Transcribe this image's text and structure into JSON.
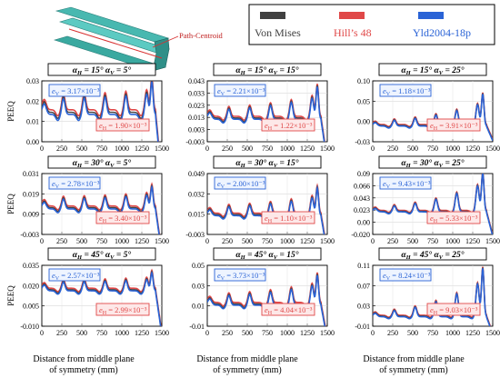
{
  "legend": {
    "items": [
      {
        "label": "Von Mises",
        "color": "#404040"
      },
      {
        "label": "Hill’s 48",
        "color": "#e04848"
      },
      {
        "label": "Yld2004-18p",
        "color": "#2a63d6"
      }
    ]
  },
  "inset": {
    "label": "Path-Centroid"
  },
  "colors": {
    "vm": "#404040",
    "hill": "#e04848",
    "yld": "#2a63d6",
    "ev_border": "#2a63d6",
    "ev_text": "#2a63d6",
    "eh_border": "#e04848",
    "eh_text": "#e04848",
    "eh_fill": "#fde8e8"
  },
  "footer": {
    "xlabel_line1": "Distance from middle plane",
    "xlabel_line2": "of symmetry (mm)",
    "ylabel": "PEEQ"
  },
  "chart_data": [
    {
      "type": "line",
      "row": 0,
      "col": 0,
      "alpha_h": "15°",
      "alpha_v": "5°",
      "yticks": [
        "0.03",
        "0.02",
        "0.01",
        "0.00"
      ],
      "ylim": [
        0,
        0.03
      ],
      "xticks": [
        "0",
        "250",
        "500",
        "750",
        "1000",
        "1250",
        "1500"
      ],
      "xlim": [
        0,
        1500
      ],
      "e_v": "3.17×10⁻³",
      "e_h": "1.90×10⁻³",
      "series_base": 0.0145,
      "peak_amp": 0.0085,
      "peak_growth": 0.3
    },
    {
      "type": "line",
      "row": 0,
      "col": 1,
      "alpha_h": "15°",
      "alpha_v": "15°",
      "yticks": [
        "0.043",
        "0.033",
        "0.023",
        "0.013",
        "0.003",
        "-0.003"
      ],
      "ylim": [
        -0.003,
        0.043
      ],
      "xticks": [
        "0",
        "250",
        "500",
        "750",
        "1000",
        "1250",
        "1500"
      ],
      "xlim": [
        0,
        1500
      ],
      "e_v": "2.21×10⁻³",
      "e_h": "1.22×10⁻³",
      "series_base": 0.015,
      "peak_amp": 0.008,
      "peak_growth": 1.2
    },
    {
      "type": "line",
      "row": 0,
      "col": 2,
      "alpha_h": "15°",
      "alpha_v": "25°",
      "yticks": [
        "0.10",
        "0.05",
        "0.00",
        "-0.03"
      ],
      "ylim": [
        -0.03,
        0.1
      ],
      "xticks": [
        "0",
        "250",
        "500",
        "750",
        "1000",
        "1250",
        "1500"
      ],
      "xlim": [
        0,
        1500
      ],
      "e_v": "1.18×10⁻³",
      "e_h": "3.91×10⁻³",
      "series_base": 0.005,
      "peak_amp": 0.012,
      "peak_growth": 3.2
    },
    {
      "type": "line",
      "row": 1,
      "col": 0,
      "alpha_h": "30°",
      "alpha_v": "5°",
      "yticks": [
        "0.031",
        "0.019",
        "0.009",
        "-0.003"
      ],
      "ylim": [
        -0.003,
        0.031
      ],
      "xticks": [
        "0",
        "250",
        "500",
        "750",
        "1000",
        "1250",
        "1500"
      ],
      "xlim": [
        0,
        1500
      ],
      "e_v": "2.78×10⁻³",
      "e_h": "3.40×10⁻³",
      "series_base": 0.012,
      "peak_amp": 0.006,
      "peak_growth": 0.4
    },
    {
      "type": "line",
      "row": 1,
      "col": 1,
      "alpha_h": "30°",
      "alpha_v": "15°",
      "yticks": [
        "0.049",
        "0.032",
        "0.015",
        "-0.003"
      ],
      "ylim": [
        -0.003,
        0.049
      ],
      "xticks": [
        "0",
        "250",
        "500",
        "750",
        "1000",
        "1250",
        "1500"
      ],
      "xlim": [
        0,
        1500
      ],
      "e_v": "2.00×10⁻³",
      "e_h": "1.10×10⁻³",
      "series_base": 0.014,
      "peak_amp": 0.008,
      "peak_growth": 1.1
    },
    {
      "type": "line",
      "row": 1,
      "col": 2,
      "alpha_h": "30°",
      "alpha_v": "25°",
      "yticks": [
        "0.09",
        "0.066",
        "0.043",
        "0.023",
        "0.00",
        "-0.020"
      ],
      "ylim": [
        -0.02,
        0.09
      ],
      "xticks": [
        "0",
        "250",
        "500",
        "750",
        "1000",
        "1250",
        "1500"
      ],
      "xlim": [
        0,
        1500
      ],
      "e_v": "9.43×10⁻³",
      "e_h": "5.33×10⁻³",
      "series_base": 0.022,
      "peak_amp": 0.01,
      "peak_growth": 4.2
    },
    {
      "type": "line",
      "row": 2,
      "col": 0,
      "alpha_h": "45°",
      "alpha_v": "5°",
      "yticks": [
        "0.035",
        "0.020",
        "0.005",
        "-0.010"
      ],
      "ylim": [
        -0.01,
        0.035
      ],
      "xticks": [
        "0",
        "250",
        "500",
        "750",
        "1000",
        "1250",
        "1500"
      ],
      "xlim": [
        0,
        1500
      ],
      "e_v": "2.57×10⁻³",
      "e_h": "2.99×10⁻³",
      "series_base": 0.017,
      "peak_amp": 0.007,
      "peak_growth": 0.3
    },
    {
      "type": "line",
      "row": 2,
      "col": 1,
      "alpha_h": "45°",
      "alpha_v": "15°",
      "yticks": [
        "0.05",
        "0.03",
        "0.01",
        "-0.01"
      ],
      "ylim": [
        -0.01,
        0.05
      ],
      "xticks": [
        "0",
        "250",
        "500",
        "750",
        "1000",
        "1250",
        "1500"
      ],
      "xlim": [
        0,
        1500
      ],
      "e_v": "3.73×10⁻³",
      "e_h": "4.04×10⁻³",
      "series_base": 0.012,
      "peak_amp": 0.01,
      "peak_growth": 1.1
    },
    {
      "type": "line",
      "row": 2,
      "col": 2,
      "alpha_h": "45°",
      "alpha_v": "25°",
      "yticks": [
        "0.11",
        "0.07",
        "0.03",
        "-0.01"
      ],
      "ylim": [
        -0.01,
        0.11
      ],
      "xticks": [
        "0",
        "250",
        "500",
        "750",
        "1000",
        "1250",
        "1500"
      ],
      "xlim": [
        0,
        1500
      ],
      "e_v": "8.24×10⁻³",
      "e_h": "9.03×10⁻³",
      "series_base": 0.01,
      "peak_amp": 0.011,
      "peak_growth": 5.5
    }
  ]
}
